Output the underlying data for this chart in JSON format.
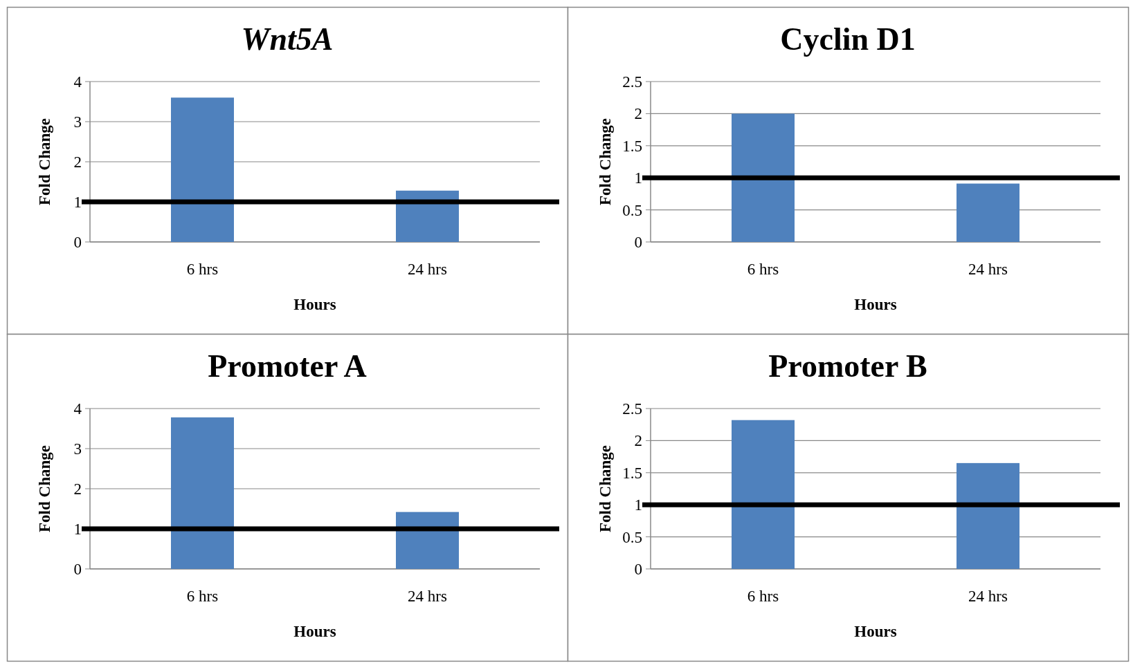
{
  "chart_data": [
    {
      "type": "bar",
      "title": "Wnt5A",
      "xlabel": "Hours",
      "ylabel": "Fold Change",
      "categories": [
        "6 hrs",
        "24 hrs"
      ],
      "values": [
        3.6,
        1.28
      ],
      "color": "#4f81bd",
      "ylim": [
        0,
        4
      ],
      "yticks": [
        0,
        1,
        2,
        3,
        4
      ],
      "grid": "y",
      "ref_lines": [
        {
          "axis": "y",
          "value": 1,
          "color": "#000000"
        }
      ]
    },
    {
      "type": "bar",
      "title": "Cyclin D1",
      "xlabel": "Hours",
      "ylabel": "Fold Change",
      "categories": [
        "6 hrs",
        "24 hrs"
      ],
      "values": [
        2.0,
        0.91
      ],
      "color": "#4f81bd",
      "ylim": [
        0,
        2.5
      ],
      "yticks": [
        0,
        0.5,
        1,
        1.5,
        2,
        2.5
      ],
      "grid": "y",
      "ref_lines": [
        {
          "axis": "y",
          "value": 1,
          "color": "#000000"
        }
      ]
    },
    {
      "type": "bar",
      "title": "Promoter A",
      "xlabel": "Hours",
      "ylabel": "Fold Change",
      "categories": [
        "6 hrs",
        "24 hrs"
      ],
      "values": [
        3.78,
        1.42
      ],
      "color": "#4f81bd",
      "ylim": [
        0,
        4
      ],
      "yticks": [
        0,
        1,
        2,
        3,
        4
      ],
      "grid": "y",
      "ref_lines": [
        {
          "axis": "y",
          "value": 1,
          "color": "#000000"
        }
      ]
    },
    {
      "type": "bar",
      "title": "Promoter B",
      "xlabel": "Hours",
      "ylabel": "Fold Change",
      "categories": [
        "6 hrs",
        "24 hrs"
      ],
      "values": [
        2.32,
        1.65
      ],
      "color": "#4f81bd",
      "ylim": [
        0,
        2.5
      ],
      "yticks": [
        0,
        0.5,
        1,
        1.5,
        2,
        2.5
      ],
      "grid": "y",
      "ref_lines": [
        {
          "axis": "y",
          "value": 1,
          "color": "#000000"
        }
      ]
    }
  ]
}
